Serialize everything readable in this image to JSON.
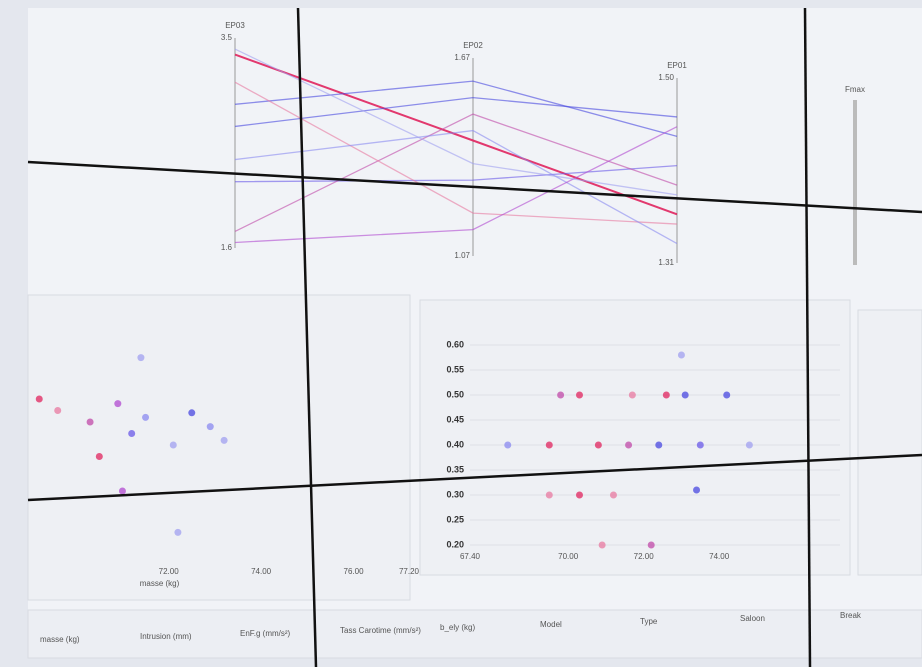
{
  "parallel": {
    "axes": [
      {
        "name": "EP03",
        "top": {
          "value": 3.5,
          "label": "3.5"
        },
        "bottom": {
          "value": 1.6,
          "label": "1.6"
        }
      },
      {
        "name": "EP02",
        "top": {
          "value": 1.67,
          "label": "1.67"
        },
        "bottom": {
          "value": 1.07,
          "label": "1.07"
        }
      },
      {
        "name": "EP01",
        "top": {
          "value": 1.5,
          "label": "1.50"
        },
        "bottom": {
          "value": 1.31,
          "label": "1.31"
        }
      }
    ],
    "extra_axis": "Fmax",
    "lines": [
      {
        "color": "#e0245e",
        "values": [
          3.35,
          1.42,
          1.36
        ]
      },
      {
        "color": "#4848e0",
        "values": [
          2.7,
          1.55,
          1.46
        ]
      },
      {
        "color": "#4848e0",
        "values": [
          2.9,
          1.6,
          1.44
        ]
      },
      {
        "color": "#6a5ae8",
        "values": [
          2.2,
          1.3,
          1.41
        ]
      },
      {
        "color": "#c04aa8",
        "values": [
          1.75,
          1.5,
          1.39
        ]
      },
      {
        "color": "#e87aa0",
        "values": [
          3.1,
          1.2,
          1.35
        ]
      },
      {
        "color": "#8a8af0",
        "values": [
          2.4,
          1.45,
          1.33
        ]
      },
      {
        "color": "#b04ad0",
        "values": [
          1.65,
          1.15,
          1.45
        ]
      },
      {
        "color": "#a0a0f0",
        "values": [
          3.4,
          1.35,
          1.38
        ]
      }
    ]
  },
  "left_scatter": {
    "x_label": "masse (kg)",
    "xlim": [
      69,
      77.2
    ],
    "ylim": [
      0,
      1
    ],
    "xticks": [
      {
        "value": 72,
        "label": "72.00"
      },
      {
        "value": 74,
        "label": "74.00"
      },
      {
        "value": 76,
        "label": "76.00"
      },
      {
        "value": 77.2,
        "label": "77.20"
      }
    ],
    "points": [
      {
        "x": 69.2,
        "y": 0.7,
        "color": "#e0245e"
      },
      {
        "x": 69.6,
        "y": 0.65,
        "color": "#e87aa0"
      },
      {
        "x": 70.3,
        "y": 0.6,
        "color": "#c04aa8"
      },
      {
        "x": 70.5,
        "y": 0.45,
        "color": "#e0245e"
      },
      {
        "x": 70.9,
        "y": 0.68,
        "color": "#b04ad0"
      },
      {
        "x": 71.2,
        "y": 0.55,
        "color": "#6a5ae8"
      },
      {
        "x": 71.5,
        "y": 0.62,
        "color": "#8a8af0"
      },
      {
        "x": 72.1,
        "y": 0.5,
        "color": "#a0a0f0"
      },
      {
        "x": 72.5,
        "y": 0.64,
        "color": "#4848e0"
      },
      {
        "x": 72.9,
        "y": 0.58,
        "color": "#8a8af0"
      },
      {
        "x": 73.2,
        "y": 0.52,
        "color": "#a0a0f0"
      },
      {
        "x": 71.0,
        "y": 0.3,
        "color": "#b04ad0"
      },
      {
        "x": 71.4,
        "y": 0.88,
        "color": "#a0a0f0"
      },
      {
        "x": 72.2,
        "y": 0.12,
        "color": "#a0a0f0"
      }
    ]
  },
  "mid_scatter": {
    "xlim": [
      67.4,
      77.2
    ],
    "ylim": [
      0.2,
      0.6
    ],
    "xticks": [
      {
        "value": 67.4,
        "label": "67.40"
      },
      {
        "value": 70,
        "label": "70.00"
      },
      {
        "value": 72,
        "label": "72.00"
      },
      {
        "value": 74,
        "label": "74.00"
      }
    ],
    "yticks": [
      {
        "value": 0.2,
        "label": "0.20"
      },
      {
        "value": 0.25,
        "label": "0.25"
      },
      {
        "value": 0.3,
        "label": "0.30"
      },
      {
        "value": 0.35,
        "label": "0.35"
      },
      {
        "value": 0.4,
        "label": "0.40"
      },
      {
        "value": 0.45,
        "label": "0.45"
      },
      {
        "value": 0.5,
        "label": "0.50"
      },
      {
        "value": 0.55,
        "label": "0.55"
      },
      {
        "value": 0.6,
        "label": "0.60"
      }
    ],
    "points": [
      {
        "x": 69.8,
        "y": 0.5,
        "color": "#c04aa8"
      },
      {
        "x": 70.3,
        "y": 0.5,
        "color": "#e0245e"
      },
      {
        "x": 71.7,
        "y": 0.5,
        "color": "#e87aa0"
      },
      {
        "x": 72.6,
        "y": 0.5,
        "color": "#e0245e"
      },
      {
        "x": 73.1,
        "y": 0.5,
        "color": "#4848e0"
      },
      {
        "x": 74.2,
        "y": 0.5,
        "color": "#4848e0"
      },
      {
        "x": 68.4,
        "y": 0.4,
        "color": "#8a8af0"
      },
      {
        "x": 69.5,
        "y": 0.4,
        "color": "#e0245e"
      },
      {
        "x": 70.8,
        "y": 0.4,
        "color": "#e0245e"
      },
      {
        "x": 71.6,
        "y": 0.4,
        "color": "#c04aa8"
      },
      {
        "x": 72.4,
        "y": 0.4,
        "color": "#4848e0"
      },
      {
        "x": 73.5,
        "y": 0.4,
        "color": "#6a5ae8"
      },
      {
        "x": 74.8,
        "y": 0.4,
        "color": "#a0a0f0"
      },
      {
        "x": 69.5,
        "y": 0.3,
        "color": "#e87aa0"
      },
      {
        "x": 70.3,
        "y": 0.3,
        "color": "#e0245e"
      },
      {
        "x": 71.2,
        "y": 0.3,
        "color": "#e87aa0"
      },
      {
        "x": 73.4,
        "y": 0.31,
        "color": "#4848e0"
      },
      {
        "x": 70.9,
        "y": 0.2,
        "color": "#e87aa0"
      },
      {
        "x": 72.2,
        "y": 0.2,
        "color": "#c04aa8"
      },
      {
        "x": 73.0,
        "y": 0.58,
        "color": "#a0a0f0"
      }
    ]
  },
  "filters": [
    "masse (kg)",
    "Intrusion (mm)",
    "EnF.g (mm/s²)",
    "Tass Carotime (mm/s²)",
    "b_ely (kg)",
    "Model",
    "Type",
    "Saloon",
    "Break"
  ]
}
